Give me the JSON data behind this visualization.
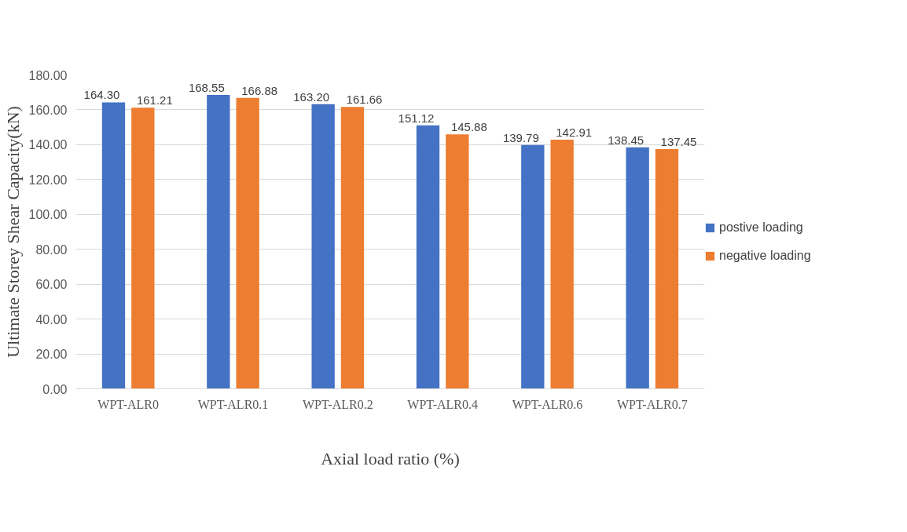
{
  "chart_data": {
    "type": "bar",
    "xlabel": "Axial load ratio (%)",
    "ylabel": "Ultimate Storey Shear Capacity(kN)",
    "categories": [
      "WPT-ALR0",
      "WPT-ALR0.1",
      "WPT-ALR0.2",
      "WPT-ALR0.4",
      "WPT-ALR0.6",
      "WPT-ALR0.7"
    ],
    "series": [
      {
        "name": "postive loading",
        "color": "#4472c4",
        "values": [
          164.3,
          168.55,
          163.2,
          151.12,
          139.79,
          138.45
        ],
        "value_labels": [
          "164.30",
          "168.55",
          "163.20",
          "151.12",
          "139.79",
          "138.45"
        ]
      },
      {
        "name": "negative loading",
        "color": "#ed7d31",
        "values": [
          161.21,
          166.88,
          161.66,
          145.88,
          142.91,
          137.45
        ],
        "value_labels": [
          "161.21",
          "166.88",
          "161.66",
          "145.88",
          "142.91",
          "137.45"
        ]
      }
    ],
    "ylim": [
      0,
      180
    ],
    "yticks": [
      {
        "value": 0,
        "label": "0.00"
      },
      {
        "value": 20,
        "label": "20.00"
      },
      {
        "value": 40,
        "label": "40.00"
      },
      {
        "value": 60,
        "label": "60.00"
      },
      {
        "value": 80,
        "label": "80.00"
      },
      {
        "value": 100,
        "label": "100.00"
      },
      {
        "value": 120,
        "label": "120.00"
      },
      {
        "value": 140,
        "label": "140.00"
      },
      {
        "value": 160,
        "label": "160.00"
      },
      {
        "value": 180,
        "label": "180.00"
      }
    ],
    "grid": "y",
    "legend": "right"
  }
}
